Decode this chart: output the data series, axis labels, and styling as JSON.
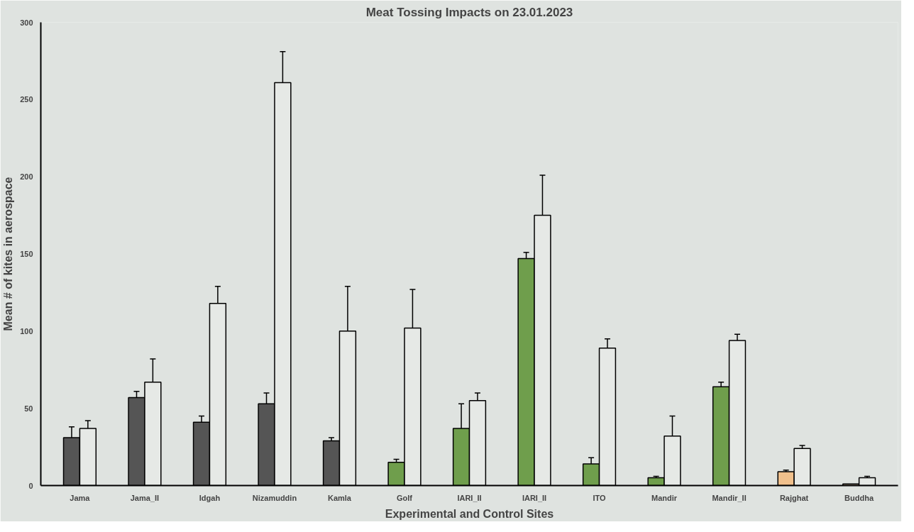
{
  "chart_data": {
    "type": "bar",
    "title": "Meat Tossing Impacts on 23.01.2023",
    "xlabel": "Experimental and Control Sites",
    "ylabel": "Mean # of kites in aerospace",
    "categories": [
      "Jama",
      "Jama_II",
      "Idgah",
      "Nizamuddin",
      "Kamla",
      "Golf",
      "IARI_II",
      "IARI_II",
      "ITO",
      "Mandir",
      "Mandir_II",
      "Rajghat",
      "Buddha"
    ],
    "series": [
      {
        "colors": [
          "#555555",
          "#555555",
          "#555555",
          "#555555",
          "#555555",
          "#6f9e4c",
          "#6f9e4c",
          "#6f9e4c",
          "#6f9e4c",
          "#6f9e4c",
          "#6f9e4c",
          "#f0c08c",
          "#f3d6bc"
        ],
        "values": [
          31,
          57,
          41,
          53,
          29,
          15,
          37,
          147,
          14,
          5,
          64,
          9,
          1
        ],
        "errors": [
          7,
          4,
          4,
          7,
          2,
          2,
          16,
          4,
          4,
          1,
          3,
          1,
          null
        ]
      },
      {
        "colors": [
          "#e6e9e6",
          "#e6e9e6",
          "#e6e9e6",
          "#e6e9e6",
          "#e6e9e6",
          "#e6e9e6",
          "#e6e9e6",
          "#e6e9e6",
          "#e6e9e6",
          "#e6e9e6",
          "#e6e9e6",
          "#e6e9e6",
          "#e6e9e6"
        ],
        "values": [
          37,
          67,
          118,
          261,
          100,
          102,
          55,
          175,
          89,
          32,
          94,
          24,
          5
        ],
        "errors": [
          5,
          15,
          11,
          20,
          29,
          25,
          5,
          26,
          6,
          13,
          4,
          2,
          1
        ]
      }
    ],
    "ylim": [
      0,
      300
    ],
    "yticks": [
      0,
      50,
      100,
      150,
      200,
      250,
      300
    ],
    "grid": false
  }
}
